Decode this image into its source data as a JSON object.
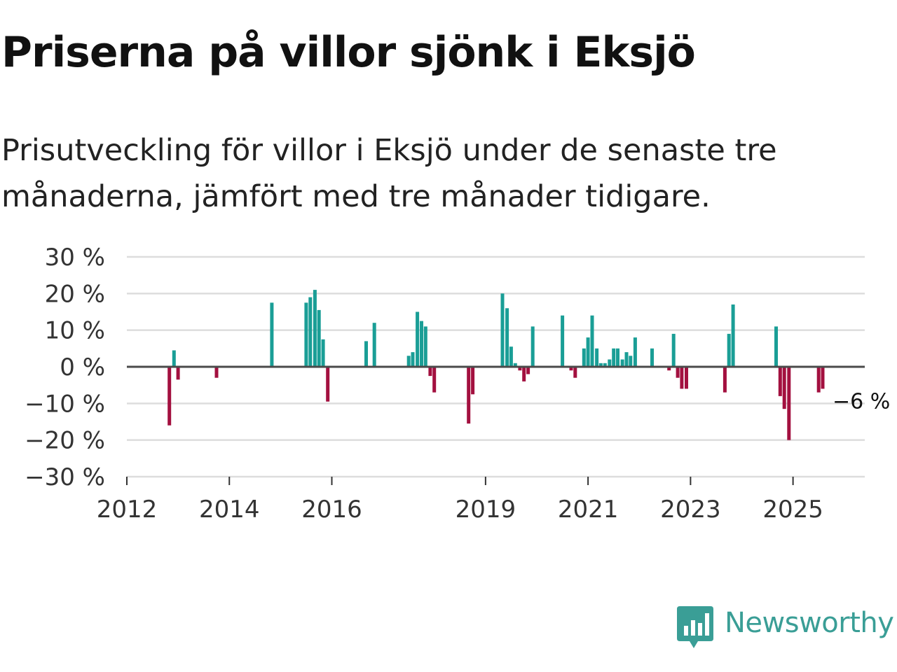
{
  "title": "Priserna på villor sjönk i Eksjö",
  "subtitle": "Prisutveckling för villor i Eksjö under de senaste tre månaderna, jämfört med tre månader tidigare.",
  "brand": {
    "name": "Newsworthy"
  },
  "colors": {
    "positive": "#1a9e96",
    "negative": "#a3103f",
    "brand": "#3a9e96"
  },
  "chart_data": {
    "type": "bar",
    "title": "Priserna på villor sjönk i Eksjö",
    "xlabel": "",
    "ylabel": "",
    "ylim": [
      -30,
      30
    ],
    "xlim": [
      2012.0,
      2026.4
    ],
    "yticks": [
      30,
      20,
      10,
      0,
      -10,
      -20,
      -30
    ],
    "ytick_labels": [
      "30 %",
      "20 %",
      "10 %",
      "0 %",
      "−10 %",
      "−20 %",
      "−30 %"
    ],
    "xticks": [
      2012,
      2014,
      2016,
      2019,
      2021,
      2023,
      2025
    ],
    "xtick_labels": [
      "2012",
      "2014",
      "2016",
      "2019",
      "2021",
      "2023",
      "2025"
    ],
    "last_value_label": "−6 %",
    "series": [
      {
        "name": "Prisutveckling",
        "points": [
          {
            "t": 2012.83,
            "v": -16
          },
          {
            "t": 2012.92,
            "v": 4.5
          },
          {
            "t": 2013.0,
            "v": -3.5
          },
          {
            "t": 2013.75,
            "v": -3
          },
          {
            "t": 2014.83,
            "v": 17.5
          },
          {
            "t": 2015.5,
            "v": 17.5
          },
          {
            "t": 2015.58,
            "v": 19
          },
          {
            "t": 2015.67,
            "v": 21
          },
          {
            "t": 2015.75,
            "v": 15.5
          },
          {
            "t": 2015.83,
            "v": 7.5
          },
          {
            "t": 2015.92,
            "v": -9.5
          },
          {
            "t": 2016.67,
            "v": 7
          },
          {
            "t": 2016.83,
            "v": 12
          },
          {
            "t": 2017.5,
            "v": 3
          },
          {
            "t": 2017.58,
            "v": 4
          },
          {
            "t": 2017.67,
            "v": 15
          },
          {
            "t": 2017.75,
            "v": 12.5
          },
          {
            "t": 2017.83,
            "v": 11
          },
          {
            "t": 2017.92,
            "v": -2.5
          },
          {
            "t": 2018.0,
            "v": -7
          },
          {
            "t": 2018.67,
            "v": -15.5
          },
          {
            "t": 2018.75,
            "v": -7.5
          },
          {
            "t": 2019.33,
            "v": 20
          },
          {
            "t": 2019.42,
            "v": 16
          },
          {
            "t": 2019.5,
            "v": 5.5
          },
          {
            "t": 2019.58,
            "v": 1
          },
          {
            "t": 2019.67,
            "v": -1
          },
          {
            "t": 2019.75,
            "v": -4
          },
          {
            "t": 2019.83,
            "v": -2
          },
          {
            "t": 2019.92,
            "v": 11
          },
          {
            "t": 2020.5,
            "v": 14
          },
          {
            "t": 2020.67,
            "v": -1
          },
          {
            "t": 2020.75,
            "v": -3
          },
          {
            "t": 2020.92,
            "v": 5
          },
          {
            "t": 2021.0,
            "v": 8
          },
          {
            "t": 2021.08,
            "v": 14
          },
          {
            "t": 2021.17,
            "v": 5
          },
          {
            "t": 2021.25,
            "v": 1
          },
          {
            "t": 2021.33,
            "v": 1
          },
          {
            "t": 2021.42,
            "v": 2
          },
          {
            "t": 2021.5,
            "v": 5
          },
          {
            "t": 2021.58,
            "v": 5
          },
          {
            "t": 2021.67,
            "v": 2
          },
          {
            "t": 2021.75,
            "v": 4
          },
          {
            "t": 2021.83,
            "v": 3
          },
          {
            "t": 2021.92,
            "v": 8
          },
          {
            "t": 2022.25,
            "v": 5
          },
          {
            "t": 2022.58,
            "v": -1
          },
          {
            "t": 2022.67,
            "v": 9
          },
          {
            "t": 2022.75,
            "v": -3
          },
          {
            "t": 2022.83,
            "v": -6
          },
          {
            "t": 2022.92,
            "v": -6
          },
          {
            "t": 2023.67,
            "v": -7
          },
          {
            "t": 2023.75,
            "v": 9
          },
          {
            "t": 2023.83,
            "v": 17
          },
          {
            "t": 2024.67,
            "v": 11
          },
          {
            "t": 2024.75,
            "v": -8
          },
          {
            "t": 2024.83,
            "v": -11.5
          },
          {
            "t": 2024.92,
            "v": -20
          },
          {
            "t": 2025.5,
            "v": -7
          },
          {
            "t": 2025.58,
            "v": -6
          }
        ]
      }
    ]
  }
}
